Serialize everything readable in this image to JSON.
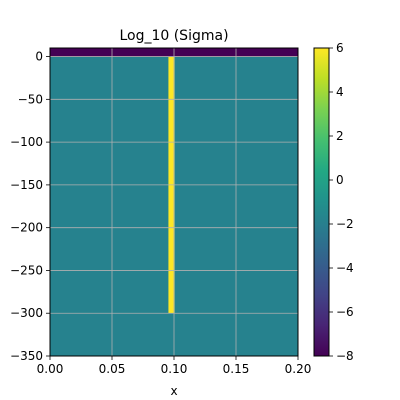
{
  "chart_data": {
    "type": "heatmap",
    "title": "Log_10 (Sigma)",
    "xlabel": "x",
    "ylabel": "",
    "xlim": [
      0.0,
      0.2
    ],
    "ylim": [
      -350,
      10
    ],
    "grid": true,
    "x_ticks": [
      "0.00",
      "0.05",
      "0.10",
      "0.15",
      "0.20"
    ],
    "y_ticks": [
      "0",
      "−50",
      "−100",
      "−150",
      "−200",
      "−250",
      "−300",
      "−350"
    ],
    "x_tick_values": [
      0.0,
      0.05,
      0.1,
      0.15,
      0.2
    ],
    "y_tick_values": [
      0,
      -50,
      -100,
      -150,
      -200,
      -250,
      -300,
      -350
    ],
    "regions": [
      {
        "name": "air",
        "x": [
          0.0,
          0.2
        ],
        "y": [
          0,
          10
        ],
        "value": -8
      },
      {
        "name": "background",
        "x": [
          0.0,
          0.2
        ],
        "y": [
          -350,
          0
        ],
        "value": -1
      },
      {
        "name": "casing",
        "x": [
          0.0955,
          0.1005
        ],
        "y": [
          -300,
          0
        ],
        "value": 6
      }
    ],
    "colorbar": {
      "colormap": "viridis",
      "range": [
        -8,
        6
      ],
      "ticks": [
        "6",
        "4",
        "2",
        "0",
        "−2",
        "−4",
        "−6",
        "−8"
      ],
      "tick_values": [
        6,
        4,
        2,
        0,
        -2,
        -4,
        -6,
        -8
      ]
    },
    "colors": {
      "air": "#440154",
      "background": "#26828e",
      "casing": "#fde725",
      "grid": "#b0b0b0"
    }
  }
}
